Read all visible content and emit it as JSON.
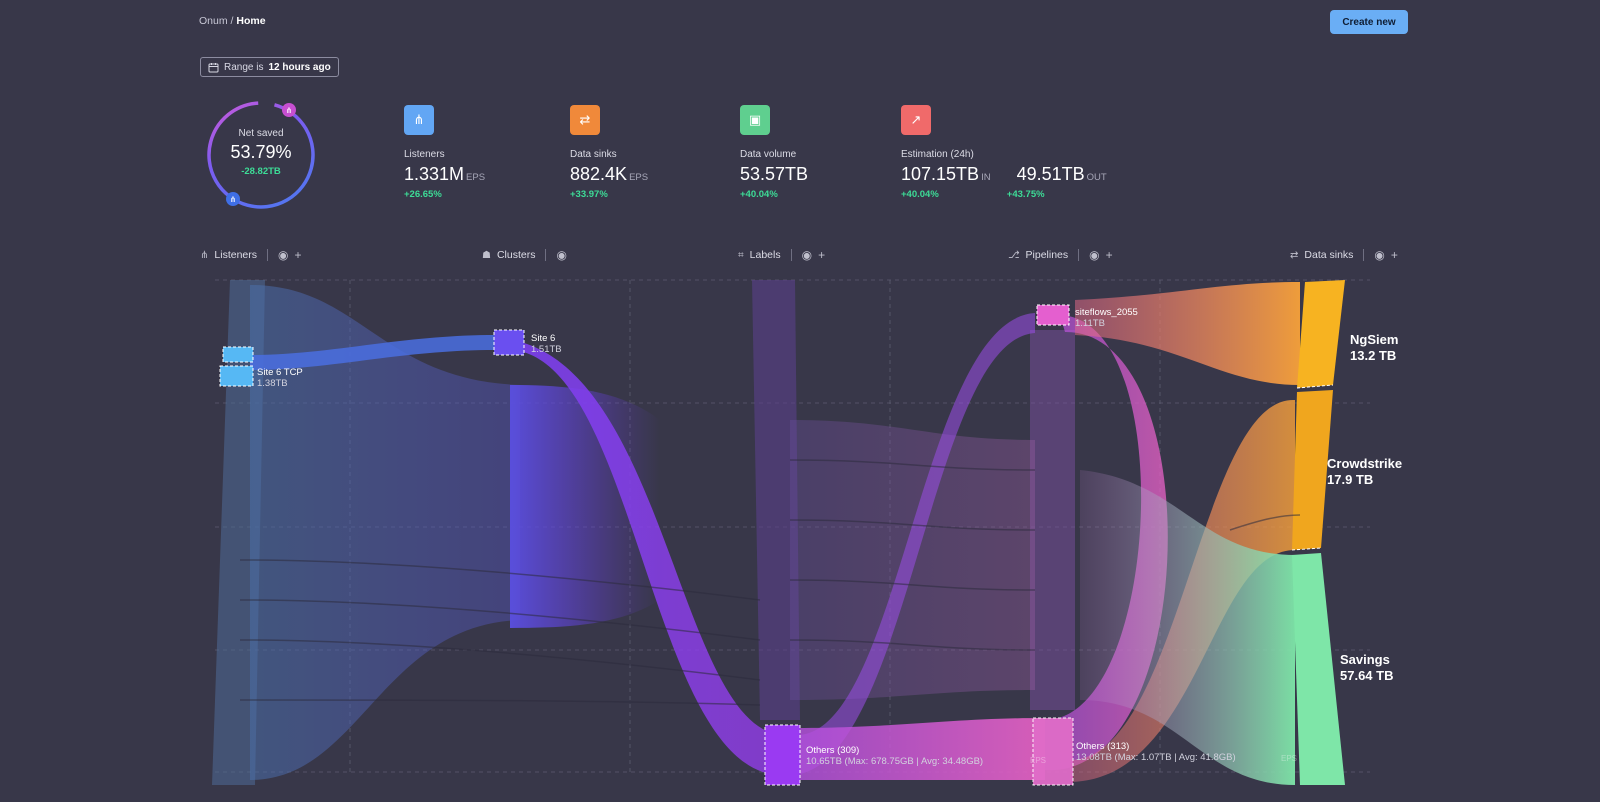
{
  "breadcrumb": {
    "root": "Onum",
    "separator": "/",
    "current": "Home"
  },
  "header": {
    "create_label": "Create new"
  },
  "range": {
    "prefix": "Range is",
    "value": "12 hours ago"
  },
  "net_saved": {
    "title": "Net saved",
    "value": "53.79%",
    "delta": "-28.82TB"
  },
  "stats": {
    "listeners": {
      "label": "Listeners",
      "value": "1.331M",
      "unit": "EPS",
      "delta": "+26.65%",
      "color": "#62a6f4"
    },
    "data_sinks": {
      "label": "Data sinks",
      "value": "882.4K",
      "unit": "EPS",
      "delta": "+33.97%",
      "color": "#f0893a"
    },
    "data_volume": {
      "label": "Data volume",
      "value": "53.57TB",
      "delta": "+40.04%",
      "color": "#5fcf8f"
    },
    "estimation": {
      "label": "Estimation (24h)",
      "color": "#f06a6a",
      "in_value": "107.15TB",
      "in_unit": "IN",
      "in_delta": "+40.04%",
      "out_value": "49.51TB",
      "out_unit": "OUT",
      "out_delta": "+43.75%"
    }
  },
  "columns": {
    "listeners": "Listeners",
    "clusters": "Clusters",
    "labels": "Labels",
    "pipelines": "Pipelines",
    "data_sinks": "Data sinks"
  },
  "nodes": {
    "site6tcp": {
      "name": "Site 6 TCP",
      "size": "1.38TB"
    },
    "site6": {
      "name": "Site 6",
      "size": "1.51TB"
    },
    "others_labels": {
      "name": "Others (309)",
      "size": "10.65TB (Max: 678.75GB | Avg: 34.48GB)"
    },
    "siteflows": {
      "name": "siteflows_2055",
      "size": "1.11TB"
    },
    "others_pipelines": {
      "name": "Others (313)",
      "size": "13.08TB (Max: 1.07TB | Avg: 41.8GB)"
    },
    "ngsiem": {
      "name": "NgSiem",
      "size": "13.2 TB"
    },
    "crowdstrike": {
      "name": "Crowdstrike",
      "size": "17.9 TB"
    },
    "savings": {
      "name": "Savings",
      "size": "57.64 TB"
    }
  },
  "watermarks": {
    "eps_a": "EPS",
    "eps_b": "EPS"
  },
  "icons": {
    "calendar": "calendar-icon",
    "eye": "eye-icon",
    "plus": "plus-icon",
    "listeners": "hierarchy-icon",
    "sinks": "arrows-icon",
    "volume": "database-icon",
    "estimation": "chart-icon"
  }
}
